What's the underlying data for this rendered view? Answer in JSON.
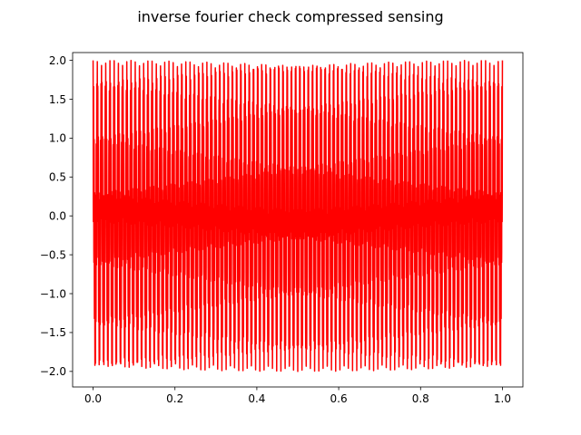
{
  "chart_data": {
    "type": "line",
    "title": "inverse fourier check compressed sensing",
    "xlabel": "",
    "ylabel": "",
    "xlim": [
      -0.05,
      1.05
    ],
    "ylim": [
      -2.2,
      2.1
    ],
    "xticks": [
      0.0,
      0.2,
      0.4,
      0.6,
      0.8,
      1.0
    ],
    "xtick_labels": [
      "0.0",
      "0.2",
      "0.4",
      "0.6",
      "0.8",
      "1.0"
    ],
    "yticks": [
      -2.0,
      -1.5,
      -1.0,
      -0.5,
      0.0,
      0.5,
      1.0,
      1.5,
      2.0
    ],
    "ytick_labels": [
      "−2.0",
      "−1.5",
      "−1.0",
      "−0.5",
      "0.0",
      "0.5",
      "1.0",
      "1.5",
      "2.0"
    ],
    "grid": false,
    "series": [
      {
        "color": "#ff0000",
        "signal": "sum of two sinusoids",
        "components": [
          {
            "amplitude": 1.0,
            "frequency": 97
          },
          {
            "amplitude": 1.0,
            "frequency": 777
          }
        ],
        "x_range": [
          0.0,
          1.0
        ],
        "y_range": [
          -2.0,
          2.0
        ]
      }
    ]
  }
}
